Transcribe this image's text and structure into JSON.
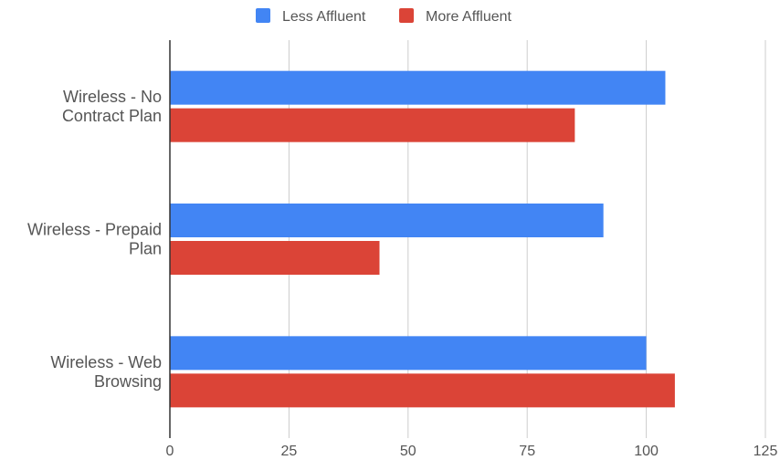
{
  "chart_data": {
    "type": "bar",
    "orientation": "horizontal",
    "categories": [
      [
        "Wireless - No",
        "Contract Plan"
      ],
      [
        "Wireless - Prepaid",
        "Plan"
      ],
      [
        "Wireless - Web",
        "Browsing"
      ]
    ],
    "series": [
      {
        "name": "Less Affluent",
        "color": "#4285f4",
        "values": [
          104,
          91,
          100
        ]
      },
      {
        "name": "More Affluent",
        "color": "#db4437",
        "values": [
          85,
          44,
          106
        ]
      }
    ],
    "xlim": [
      0,
      125
    ],
    "xticks": [
      0,
      25,
      50,
      75,
      100,
      125
    ],
    "grid": true,
    "legend_position": "top"
  }
}
